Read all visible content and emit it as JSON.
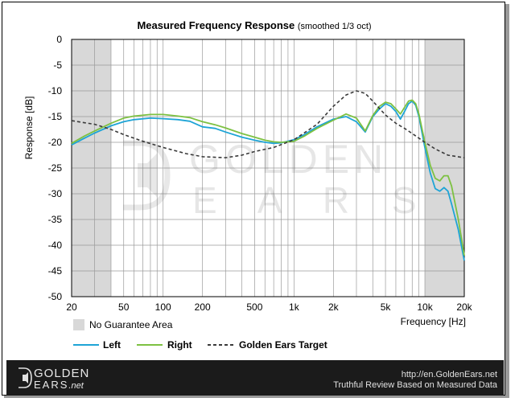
{
  "chart_data": {
    "type": "line",
    "title": "Measured Frequency Response",
    "subtitle": "(smoothed  1/3 oct)",
    "xlabel": "Frequency [Hz]",
    "ylabel": "Response [dB]",
    "x_scale": "log",
    "xlim": [
      20,
      20000
    ],
    "ylim": [
      -50,
      0
    ],
    "grid": true,
    "legend_position": "bottom",
    "x_ticks": [
      20,
      50,
      100,
      200,
      500,
      1000,
      2000,
      5000,
      10000,
      20000
    ],
    "x_tick_labels": [
      "20",
      "50",
      "100",
      "200",
      "500",
      "1k",
      "2k",
      "5k",
      "10k",
      "20k"
    ],
    "y_ticks": [
      0,
      -5,
      -10,
      -15,
      -20,
      -25,
      -30,
      -35,
      -40,
      -45,
      -50
    ],
    "y_tick_labels": [
      "0",
      "-5",
      "-10",
      "-15",
      "-20",
      "-25",
      "-30",
      "-35",
      "-40",
      "-45",
      "-50"
    ],
    "shaded_regions": [
      {
        "x": [
          20,
          40
        ],
        "label": "No Guarantee Area"
      },
      {
        "x": [
          10000,
          20000
        ],
        "label": "No Guarantee Area"
      }
    ],
    "shaded_legend_label": "No Guarantee Area",
    "series": [
      {
        "name": "Left",
        "color": "#1ea4d6",
        "dash": "solid",
        "x": [
          20,
          25,
          30,
          40,
          50,
          60,
          80,
          100,
          130,
          160,
          200,
          250,
          300,
          400,
          500,
          600,
          700,
          800,
          1000,
          1200,
          1500,
          2000,
          2500,
          3000,
          3500,
          4000,
          4500,
          5000,
          5500,
          6000,
          6500,
          7000,
          7500,
          8000,
          8500,
          9000,
          10000,
          11000,
          12000,
          13000,
          14000,
          15000,
          16000,
          18000,
          20000
        ],
        "y": [
          -20.5,
          -19.2,
          -18.2,
          -16.8,
          -16,
          -15.6,
          -15.3,
          -15.4,
          -15.6,
          -15.9,
          -17,
          -17.3,
          -18,
          -19,
          -19.6,
          -20,
          -20.2,
          -20.1,
          -19.5,
          -18.5,
          -17,
          -15.5,
          -15,
          -16,
          -18,
          -15,
          -13.5,
          -12.5,
          -13,
          -14,
          -15.5,
          -14,
          -12.5,
          -12,
          -12.8,
          -15,
          -21,
          -26,
          -29,
          -29.5,
          -28.8,
          -29.5,
          -32,
          -37,
          -43
        ]
      },
      {
        "name": "Right",
        "color": "#7dc142",
        "dash": "solid",
        "x": [
          20,
          25,
          30,
          40,
          50,
          60,
          80,
          100,
          130,
          160,
          200,
          250,
          300,
          400,
          500,
          600,
          700,
          800,
          1000,
          1200,
          1500,
          2000,
          2500,
          3000,
          3500,
          4000,
          4500,
          5000,
          5500,
          6000,
          6500,
          7000,
          7500,
          8000,
          8500,
          9000,
          10000,
          11000,
          12000,
          13000,
          14000,
          15000,
          16000,
          18000,
          20000
        ],
        "y": [
          -20.2,
          -18.8,
          -17.8,
          -16.3,
          -15.3,
          -14.9,
          -14.6,
          -14.6,
          -14.9,
          -15.2,
          -16,
          -16.6,
          -17.2,
          -18.3,
          -19,
          -19.6,
          -19.9,
          -20,
          -19.8,
          -18.8,
          -17.3,
          -15.7,
          -14.5,
          -15.3,
          -17.8,
          -14.8,
          -13,
          -12.2,
          -12.5,
          -13.5,
          -14.5,
          -13.2,
          -12,
          -11.8,
          -12.5,
          -14.5,
          -20,
          -24.5,
          -27,
          -27.5,
          -26.5,
          -26.5,
          -28.5,
          -35,
          -42
        ]
      },
      {
        "name": "Golden Ears Target",
        "color": "#3a3a3a",
        "dash": "dashed",
        "x": [
          20,
          30,
          40,
          50,
          70,
          100,
          150,
          200,
          300,
          400,
          500,
          700,
          1000,
          1500,
          2000,
          2500,
          3000,
          3500,
          4000,
          5000,
          6000,
          7000,
          8000,
          10000,
          12000,
          15000,
          20000
        ],
        "y": [
          -15.8,
          -16.5,
          -17.5,
          -18.5,
          -19.8,
          -21,
          -22.2,
          -22.8,
          -23,
          -22.5,
          -21.8,
          -21,
          -19.5,
          -16.5,
          -13,
          -10.8,
          -10,
          -10.5,
          -12,
          -14.7,
          -16.3,
          -17.3,
          -18.3,
          -20,
          -21.3,
          -22.5,
          -23
        ]
      }
    ]
  },
  "watermark": {
    "line1": "GOLDEN",
    "line2": "E A R S"
  },
  "footer": {
    "logo_line1": "GOLDEN",
    "logo_line2": "EARS",
    "logo_suffix": ".net",
    "url": "http://en.GoldenEars.net",
    "tagline": "Truthful Review Based on Measured Data"
  },
  "colors": {
    "shade": "#d8d8d8",
    "grid": "#9a9a9a",
    "footer_bg": "#1b1b1b"
  }
}
